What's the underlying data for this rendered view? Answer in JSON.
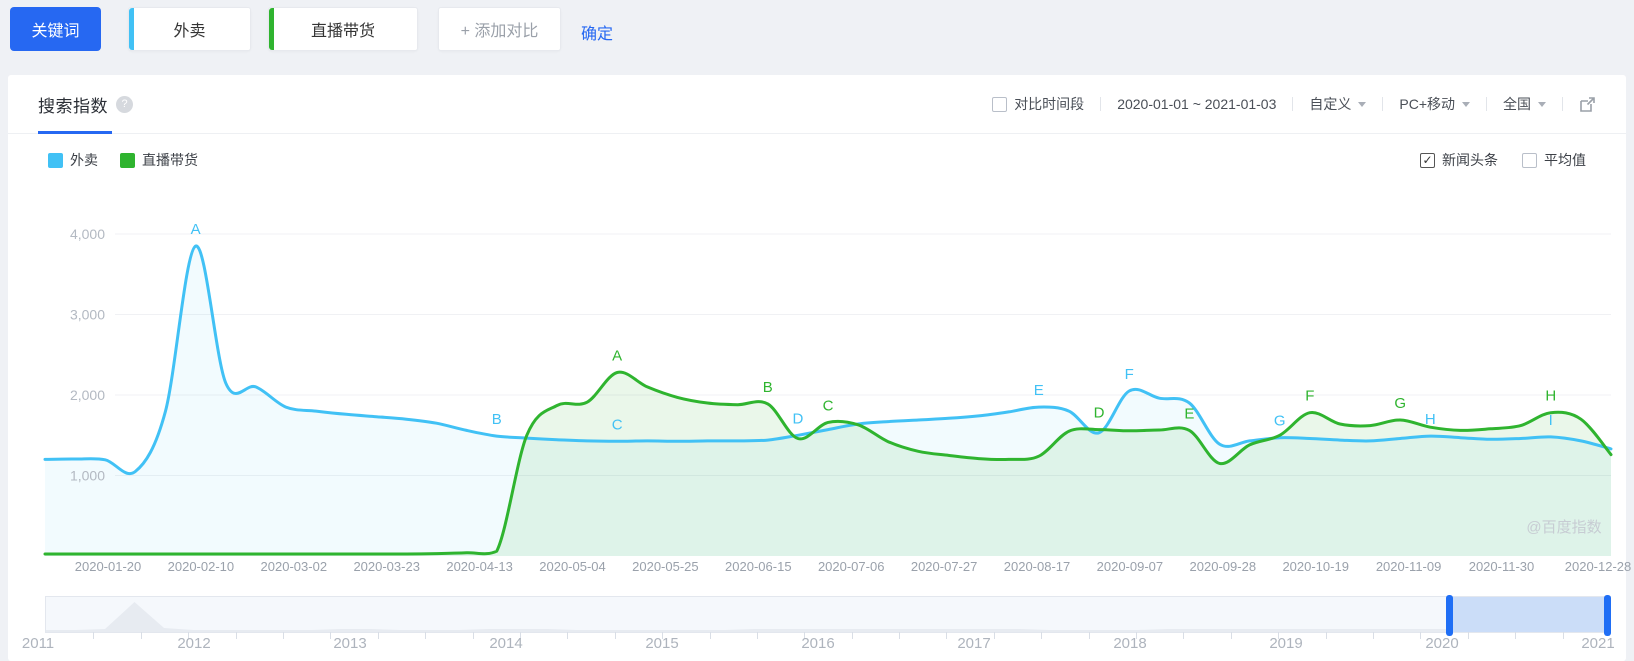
{
  "toolbar": {
    "keyword_button": "关键词",
    "keywords": [
      {
        "label": "外卖",
        "color": "#41c1f5"
      },
      {
        "label": "直播带货",
        "color": "#2fb42f"
      }
    ],
    "add_compare": "+ 添加对比",
    "confirm": "确定"
  },
  "panel": {
    "title": "搜索指数",
    "help_glyph": "?",
    "compare_checkbox": "对比时间段",
    "date_range": "2020-01-01 ~ 2021-01-03",
    "range_mode": "自定义",
    "device": "PC+移动",
    "region": "全国"
  },
  "legend": [
    {
      "label": "外卖",
      "color": "#41c1f5"
    },
    {
      "label": "直播带货",
      "color": "#2fb42f"
    }
  ],
  "options": [
    {
      "label": "新闻头条",
      "checked": true
    },
    {
      "label": "平均值",
      "checked": false
    }
  ],
  "watermark": "@百度指数",
  "chart_data": {
    "type": "line",
    "title": "搜索指数",
    "grid": true,
    "legend_position": "top-left",
    "ylim": [
      0,
      4400
    ],
    "y_ticks": [
      1000,
      2000,
      3000,
      4000
    ],
    "y_tick_labels": [
      "1,000",
      "2,000",
      "3,000",
      "4,000"
    ],
    "x_tick_labels": [
      "2020-01-20",
      "2020-02-10",
      "2020-03-02",
      "2020-03-23",
      "2020-04-13",
      "2020-05-04",
      "2020-05-25",
      "2020-06-15",
      "2020-07-06",
      "2020-07-27",
      "2020-08-17",
      "2020-09-07",
      "2020-09-28",
      "2020-10-19",
      "2020-11-09",
      "2020-11-30",
      "2020-12-28"
    ],
    "x_range": [
      "2020-01-01",
      "2021-01-03"
    ],
    "series": [
      {
        "name": "外卖",
        "color": "#41c1f5",
        "fill": "rgba(65,193,245,0.07)",
        "values": [
          1200,
          1205,
          1195,
          1050,
          1800,
          3850,
          2150,
          2100,
          1850,
          1800,
          1760,
          1730,
          1700,
          1650,
          1560,
          1490,
          1465,
          1445,
          1430,
          1425,
          1430,
          1425,
          1430,
          1430,
          1440,
          1500,
          1570,
          1640,
          1670,
          1690,
          1710,
          1740,
          1790,
          1850,
          1800,
          1530,
          2050,
          1960,
          1900,
          1390,
          1430,
          1470,
          1460,
          1440,
          1430,
          1460,
          1490,
          1470,
          1450,
          1460,
          1480,
          1430,
          1330
        ],
        "annotations": [
          {
            "letter": "A",
            "index": 5
          },
          {
            "letter": "B",
            "index": 15
          },
          {
            "letter": "C",
            "index": 19
          },
          {
            "letter": "D",
            "index": 25
          },
          {
            "letter": "E",
            "index": 33
          },
          {
            "letter": "F",
            "index": 36
          },
          {
            "letter": "G",
            "index": 41
          },
          {
            "letter": "H",
            "index": 46
          },
          {
            "letter": "I",
            "index": 50
          }
        ]
      },
      {
        "name": "直播带货",
        "color": "#2fb42f",
        "fill": "rgba(47,180,47,0.10)",
        "values": [
          25,
          25,
          25,
          25,
          25,
          25,
          25,
          25,
          25,
          25,
          25,
          25,
          25,
          30,
          40,
          60,
          1500,
          1870,
          1910,
          2280,
          2100,
          1970,
          1900,
          1880,
          1890,
          1460,
          1660,
          1630,
          1420,
          1300,
          1250,
          1210,
          1200,
          1240,
          1550,
          1570,
          1555,
          1565,
          1560,
          1150,
          1380,
          1500,
          1780,
          1640,
          1620,
          1690,
          1600,
          1560,
          1580,
          1620,
          1780,
          1700,
          1260
        ],
        "annotations": [
          {
            "letter": "A",
            "index": 19
          },
          {
            "letter": "B",
            "index": 24
          },
          {
            "letter": "C",
            "index": 26
          },
          {
            "letter": "D",
            "index": 35
          },
          {
            "letter": "E",
            "index": 38
          },
          {
            "letter": "F",
            "index": 42
          },
          {
            "letter": "G",
            "index": 45
          },
          {
            "letter": "H",
            "index": 50
          }
        ]
      }
    ]
  },
  "timeline": {
    "years": [
      "2011",
      "2012",
      "2013",
      "2014",
      "2015",
      "2016",
      "2017",
      "2018",
      "2019",
      "2020",
      "2021"
    ],
    "selection": {
      "start_frac": 0.897,
      "end_frac": 0.998
    },
    "spark": [
      2,
      2,
      3,
      30,
      4,
      2,
      2,
      2,
      2,
      2,
      3,
      3,
      2,
      2,
      2,
      3,
      3,
      3,
      2,
      2,
      2,
      2,
      2,
      2,
      3,
      3,
      3,
      3,
      3,
      3,
      3,
      3,
      3,
      3,
      2,
      2,
      2,
      2,
      3,
      3,
      3,
      3,
      3,
      3,
      3,
      3,
      3,
      3,
      3,
      3,
      3,
      3,
      3,
      2
    ],
    "accent": "#1f6ef5"
  }
}
